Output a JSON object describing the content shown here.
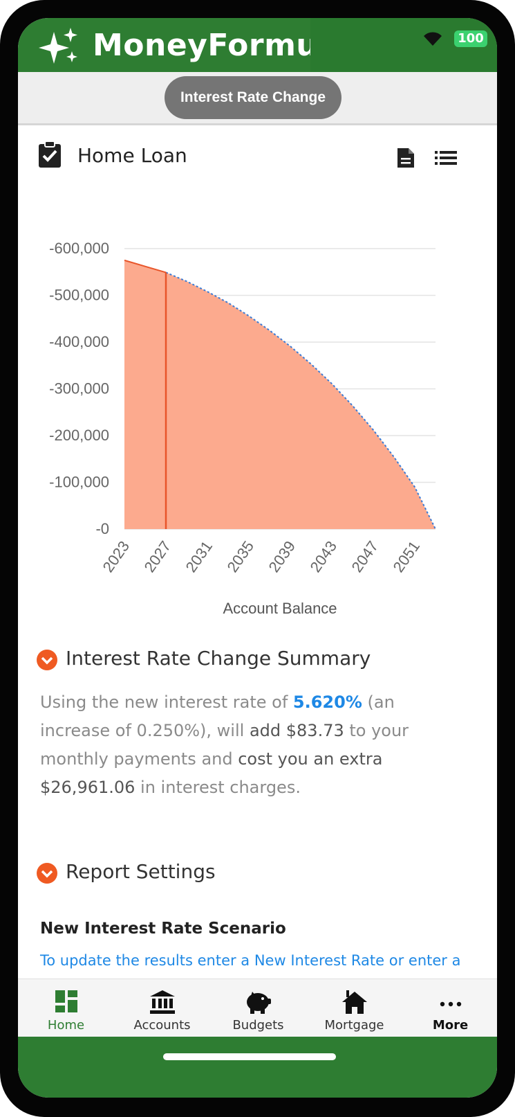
{
  "app": {
    "title": "MoneyFormula",
    "battery": "100",
    "brand_color": "#2e7d32"
  },
  "toolbar": {
    "active_report": "Interest Rate Change"
  },
  "card": {
    "title": "Home Loan",
    "icons": [
      "clipboard-check-icon",
      "document-icon",
      "list-icon"
    ]
  },
  "chart_data": {
    "type": "area",
    "xlabel": "Account Balance",
    "x_ticks": [
      "2023",
      "2027",
      "2031",
      "2035",
      "2039",
      "2043",
      "2047",
      "2051"
    ],
    "y_ticks": [
      "-0",
      "-100,000",
      "-200,000",
      "-300,000",
      "-400,000",
      "-500,000",
      "-600,000"
    ],
    "ylim": [
      0,
      600000
    ],
    "xlim": [
      2023,
      2053
    ],
    "fill_color": "#fcaa8e",
    "line_color": "#e8552a",
    "projection_line_color": "#3a7bd5",
    "marker_year": 2027,
    "series": [
      {
        "x": [
          2023,
          2025,
          2027,
          2029,
          2031,
          2033,
          2035,
          2037,
          2039,
          2041,
          2043,
          2045,
          2047,
          2049,
          2051,
          2053
        ],
        "values": [
          575000,
          562000,
          549000,
          530000,
          508000,
          484000,
          456000,
          425000,
          391000,
          353000,
          311000,
          264000,
          212000,
          154000,
          90000,
          0
        ]
      }
    ]
  },
  "summary": {
    "title": "Interest Rate Change Summary",
    "text_before_rate": "Using the new interest rate of ",
    "rate": "5.620%",
    "text_after_rate": " (an increase of 0.250%), will ",
    "add_amount_phrase": "add $83.73",
    "text_mid": " to your monthly payments and ",
    "cost_phrase": "cost you an extra $26,961.06",
    "text_end": " in interest charges."
  },
  "settings": {
    "title": "Report Settings",
    "scenario_title": "New Interest Rate Scenario",
    "scenario_hint": "To update the results enter a New Interest Rate or enter a"
  },
  "nav": {
    "items": [
      {
        "label": "Home",
        "icon": "home-grid-icon"
      },
      {
        "label": "Accounts",
        "icon": "bank-icon"
      },
      {
        "label": "Budgets",
        "icon": "piggy-bank-icon"
      },
      {
        "label": "Mortgage",
        "icon": "house-icon"
      },
      {
        "label": "More",
        "icon": "more-dots-icon"
      }
    ]
  }
}
